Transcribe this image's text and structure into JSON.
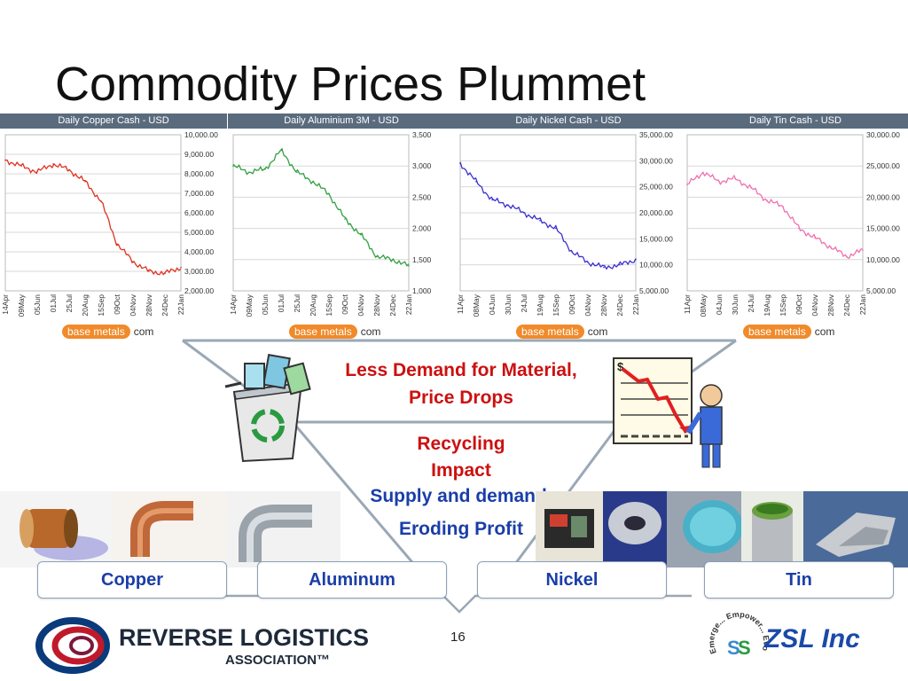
{
  "slide": {
    "title": "Commodity Prices Plummet",
    "page_number": "16"
  },
  "chart_data": [
    {
      "type": "line",
      "title": "Daily Copper Cash - USD",
      "x_ticks": [
        "14Apr",
        "09May",
        "05Jun",
        "01Jul",
        "25Jul",
        "20Aug",
        "15Sep",
        "09Oct",
        "04Nov",
        "28Nov",
        "24Dec",
        "22Jan"
      ],
      "y_ticks": [
        "10,000.00",
        "9,000.00",
        "8,000.00",
        "7,000.00",
        "6,000.00",
        "5,000.00",
        "4,000.00",
        "3,000.00",
        "2,000.00"
      ],
      "ylim": [
        2000,
        10000
      ],
      "color": "#e03020",
      "x": [
        "14Apr",
        "09May",
        "05Jun",
        "01Jul",
        "25Jul",
        "20Aug",
        "15Sep",
        "09Oct",
        "04Nov",
        "28Nov",
        "24Dec",
        "22Jan"
      ],
      "values": [
        8700,
        8400,
        8100,
        8500,
        8200,
        7600,
        6600,
        4400,
        3500,
        3000,
        2900,
        3200
      ]
    },
    {
      "type": "line",
      "title": "Daily Aluminium 3M  - USD",
      "x_ticks": [
        "14Apr",
        "09May",
        "05Jun",
        "01Jul",
        "25Jul",
        "20Aug",
        "15Sep",
        "09Oct",
        "04Nov",
        "28Nov",
        "24Dec",
        "22Jan"
      ],
      "y_ticks": [
        "3,500",
        "3,000",
        "2,500",
        "2,000",
        "1,500",
        "1,000"
      ],
      "ylim": [
        1000,
        3500
      ],
      "color": "#30a040",
      "x": [
        "14Apr",
        "09May",
        "05Jun",
        "01Jul",
        "25Jul",
        "20Aug",
        "15Sep",
        "09Oct",
        "04Nov",
        "28Nov",
        "24Dec",
        "22Jan"
      ],
      "values": [
        3000,
        2900,
        2950,
        3250,
        2900,
        2750,
        2550,
        2150,
        1900,
        1550,
        1500,
        1400
      ]
    },
    {
      "type": "line",
      "title": "Daily Nickel Cash - USD",
      "x_ticks": [
        "11Apr",
        "08May",
        "04Jun",
        "30Jun",
        "24Jul",
        "19Aug",
        "15Sep",
        "09Oct",
        "04Nov",
        "28Nov",
        "24Dec",
        "22Jan"
      ],
      "y_ticks": [
        "35,000.00",
        "30,000.00",
        "25,000.00",
        "20,000.00",
        "15,000.00",
        "10,000.00",
        "5,000.00"
      ],
      "ylim": [
        5000,
        35000
      ],
      "color": "#3a30d0",
      "x": [
        "11Apr",
        "08May",
        "04Jun",
        "30Jun",
        "24Jul",
        "19Aug",
        "15Sep",
        "09Oct",
        "04Nov",
        "28Nov",
        "24Dec",
        "22Jan"
      ],
      "values": [
        29500,
        26000,
        22500,
        21500,
        20000,
        18500,
        17000,
        12500,
        10500,
        9500,
        10000,
        11000
      ]
    },
    {
      "type": "line",
      "title": "Daily Tin Cash - USD",
      "x_ticks": [
        "11Apr",
        "08May",
        "04Jun",
        "30Jun",
        "24Jul",
        "19Aug",
        "15Sep",
        "09Oct",
        "04Nov",
        "28Nov",
        "24Dec",
        "22Jan"
      ],
      "y_ticks": [
        "30,000.00",
        "25,000.00",
        "20,000.00",
        "15,000.00",
        "10,000.00",
        "5,000.00"
      ],
      "ylim": [
        5000,
        30000
      ],
      "color": "#f070b0",
      "x": [
        "11Apr",
        "08May",
        "04Jun",
        "30Jun",
        "24Jul",
        "19Aug",
        "15Sep",
        "09Oct",
        "04Nov",
        "28Nov",
        "24Dec",
        "22Jan"
      ],
      "values": [
        22000,
        24000,
        22500,
        23000,
        21500,
        19500,
        18500,
        15000,
        13500,
        12000,
        10500,
        11500
      ]
    }
  ],
  "badges": {
    "base_metals": "base metals",
    "com": "com"
  },
  "center": {
    "less_demand": "Less Demand for Material, Price Drops",
    "recycling": "Recycling Impact",
    "supply_demand": "Supply and demand.",
    "eroding": "Eroding Profit"
  },
  "labels": [
    "Copper",
    "Aluminum",
    "Nickel",
    "Tin"
  ],
  "logos": {
    "rla_name": "REVERSE LOGISTICS",
    "rla_sub": "ASSOCIATION™",
    "zsl_name": "ZSL Inc",
    "zsl_ring": "Emerge... Empower... Evolve..."
  },
  "colors": {
    "header_bar": "#5a6b7e",
    "accent_red": "#cc1010",
    "accent_blue": "#1a3ea8",
    "badge_orange": "#f08a2a"
  }
}
